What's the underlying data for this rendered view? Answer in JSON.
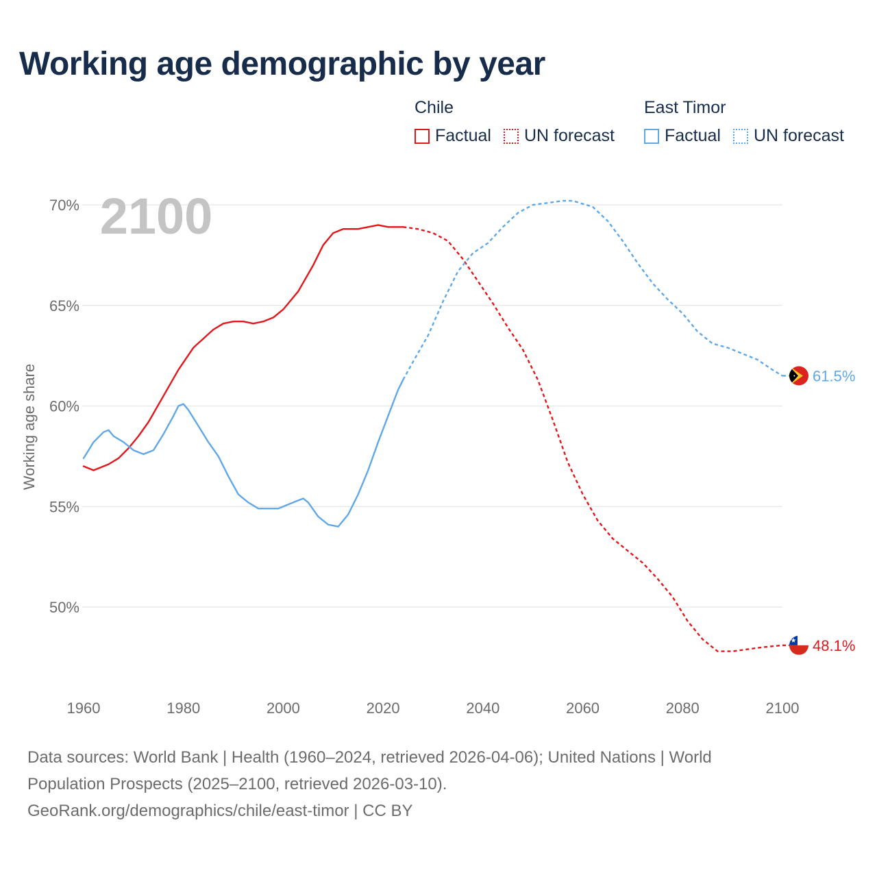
{
  "title": "Working age demographic by year",
  "legend": {
    "groups": [
      {
        "name": "Chile",
        "color": "#e3161b",
        "items": [
          {
            "label": "Factual",
            "style": "solid"
          },
          {
            "label": "UN forecast",
            "style": "dotted"
          }
        ]
      },
      {
        "name": "East Timor",
        "color": "#5fa8e8",
        "items": [
          {
            "label": "Factual",
            "style": "solid"
          },
          {
            "label": "UN forecast",
            "style": "dotted"
          }
        ]
      }
    ]
  },
  "year_watermark": "2100",
  "chart_data": {
    "type": "line",
    "title": "Working age demographic by year",
    "xlabel": "",
    "ylabel": "Working age share",
    "xlim": [
      1960,
      2100
    ],
    "ylim": [
      46,
      71.5
    ],
    "x_ticks": [
      1960,
      1980,
      2000,
      2020,
      2040,
      2060,
      2080,
      2100
    ],
    "x_tick_labels": [
      "1960",
      "1980",
      "2000",
      "2020",
      "2040",
      "2060",
      "2080",
      "2100"
    ],
    "y_ticks": [
      50,
      55,
      60,
      65,
      70
    ],
    "y_tick_labels": [
      "50%",
      "55%",
      "60%",
      "65%",
      "70%"
    ],
    "grid": true,
    "factual_end_year": 2024,
    "series": [
      {
        "name": "Chile",
        "color": "#e3161b",
        "end_label": "48.1%",
        "points": [
          [
            1960,
            57.0
          ],
          [
            1962,
            56.8
          ],
          [
            1965,
            57.1
          ],
          [
            1967,
            57.4
          ],
          [
            1969,
            57.9
          ],
          [
            1971,
            58.5
          ],
          [
            1973,
            59.2
          ],
          [
            1976,
            60.5
          ],
          [
            1979,
            61.8
          ],
          [
            1982,
            62.9
          ],
          [
            1986,
            63.8
          ],
          [
            1988,
            64.1
          ],
          [
            1990,
            64.2
          ],
          [
            1992,
            64.2
          ],
          [
            1994,
            64.1
          ],
          [
            1996,
            64.2
          ],
          [
            1998,
            64.4
          ],
          [
            2000,
            64.8
          ],
          [
            2003,
            65.7
          ],
          [
            2006,
            67.0
          ],
          [
            2008,
            68.0
          ],
          [
            2010,
            68.6
          ],
          [
            2012,
            68.8
          ],
          [
            2015,
            68.8
          ],
          [
            2017,
            68.9
          ],
          [
            2019,
            69.0
          ],
          [
            2021,
            68.9
          ],
          [
            2024,
            68.9
          ],
          [
            2027,
            68.8
          ],
          [
            2030,
            68.6
          ],
          [
            2033,
            68.2
          ],
          [
            2036,
            67.3
          ],
          [
            2039,
            66.2
          ],
          [
            2042,
            65.1
          ],
          [
            2045,
            63.9
          ],
          [
            2048,
            62.8
          ],
          [
            2051,
            61.3
          ],
          [
            2054,
            59.3
          ],
          [
            2057,
            57.2
          ],
          [
            2060,
            55.6
          ],
          [
            2063,
            54.3
          ],
          [
            2066,
            53.4
          ],
          [
            2069,
            52.8
          ],
          [
            2072,
            52.2
          ],
          [
            2075,
            51.4
          ],
          [
            2078,
            50.5
          ],
          [
            2081,
            49.3
          ],
          [
            2084,
            48.4
          ],
          [
            2087,
            47.8
          ],
          [
            2090,
            47.8
          ],
          [
            2093,
            47.9
          ],
          [
            2096,
            48.0
          ],
          [
            2100,
            48.1
          ]
        ]
      },
      {
        "name": "East Timor",
        "color": "#5fa8e8",
        "end_label": "61.5%",
        "points": [
          [
            1960,
            57.4
          ],
          [
            1962,
            58.2
          ],
          [
            1964,
            58.7
          ],
          [
            1965,
            58.8
          ],
          [
            1966,
            58.5
          ],
          [
            1968,
            58.2
          ],
          [
            1970,
            57.8
          ],
          [
            1972,
            57.6
          ],
          [
            1974,
            57.8
          ],
          [
            1976,
            58.6
          ],
          [
            1978,
            59.5
          ],
          [
            1979,
            60.0
          ],
          [
            1980,
            60.1
          ],
          [
            1981,
            59.8
          ],
          [
            1983,
            59.0
          ],
          [
            1985,
            58.2
          ],
          [
            1987,
            57.5
          ],
          [
            1989,
            56.5
          ],
          [
            1991,
            55.6
          ],
          [
            1993,
            55.2
          ],
          [
            1995,
            54.9
          ],
          [
            1997,
            54.9
          ],
          [
            1999,
            54.9
          ],
          [
            2001,
            55.1
          ],
          [
            2003,
            55.3
          ],
          [
            2004,
            55.4
          ],
          [
            2005,
            55.2
          ],
          [
            2007,
            54.5
          ],
          [
            2009,
            54.1
          ],
          [
            2011,
            54.0
          ],
          [
            2013,
            54.6
          ],
          [
            2015,
            55.6
          ],
          [
            2017,
            56.8
          ],
          [
            2019,
            58.2
          ],
          [
            2021,
            59.5
          ],
          [
            2023,
            60.8
          ],
          [
            2024,
            61.3
          ],
          [
            2026,
            62.2
          ],
          [
            2029,
            63.5
          ],
          [
            2032,
            65.2
          ],
          [
            2035,
            66.7
          ],
          [
            2038,
            67.6
          ],
          [
            2041,
            68.1
          ],
          [
            2044,
            68.9
          ],
          [
            2047,
            69.6
          ],
          [
            2050,
            70.0
          ],
          [
            2053,
            70.1
          ],
          [
            2056,
            70.2
          ],
          [
            2058,
            70.2
          ],
          [
            2062,
            69.9
          ],
          [
            2065,
            69.2
          ],
          [
            2068,
            68.2
          ],
          [
            2071,
            67.1
          ],
          [
            2074,
            66.1
          ],
          [
            2077,
            65.3
          ],
          [
            2080,
            64.6
          ],
          [
            2083,
            63.7
          ],
          [
            2086,
            63.1
          ],
          [
            2089,
            62.9
          ],
          [
            2092,
            62.6
          ],
          [
            2095,
            62.3
          ],
          [
            2098,
            61.8
          ],
          [
            2100,
            61.5
          ]
        ]
      }
    ]
  },
  "footer": {
    "line1": "Data sources: World Bank | Health (1960–2024, retrieved 2026-04-06); United Nations | World Population Prospects (2025–2100, retrieved 2026-03-10).",
    "line2": "GeoRank.org/demographics/chile/east-timor | CC BY"
  }
}
